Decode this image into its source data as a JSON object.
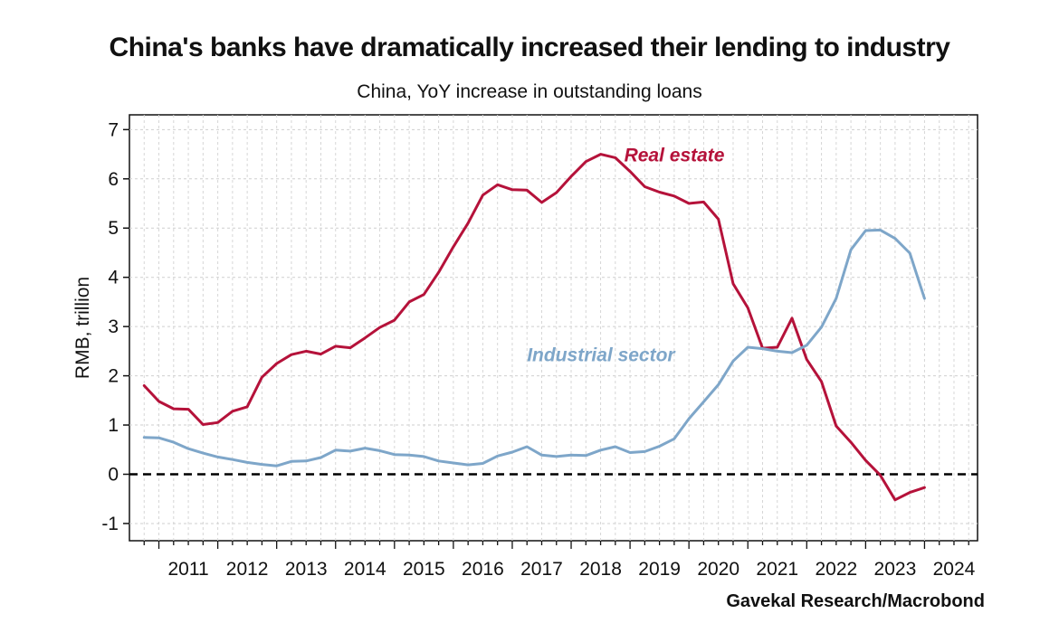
{
  "title": "China's banks have dramatically increased their lending to industry",
  "subtitle": "China, YoY increase in outstanding loans",
  "source": "Gavekal Research/Macrobond",
  "chart_data": {
    "type": "line",
    "title": "China's banks have dramatically increased their lending to industry",
    "subtitle": "China, YoY increase in outstanding loans",
    "ylabel": "RMB, trillion",
    "xlabel": "",
    "xlim": [
      2010.5,
      2024.9
    ],
    "ylim": [
      -1.35,
      7.3
    ],
    "yticks": [
      -1,
      0,
      1,
      2,
      3,
      4,
      5,
      6,
      7
    ],
    "year_labels": [
      "2011",
      "2012",
      "2013",
      "2014",
      "2015",
      "2016",
      "2017",
      "2018",
      "2019",
      "2020",
      "2021",
      "2022",
      "2023",
      "2024"
    ],
    "grid": true,
    "reference_line": {
      "y": 0,
      "style": "dashed",
      "color": "#000000"
    },
    "x": [
      2010.75,
      2011.0,
      2011.25,
      2011.5,
      2011.75,
      2012.0,
      2012.25,
      2012.5,
      2012.75,
      2013.0,
      2013.25,
      2013.5,
      2013.75,
      2014.0,
      2014.25,
      2014.5,
      2014.75,
      2015.0,
      2015.25,
      2015.5,
      2015.75,
      2016.0,
      2016.25,
      2016.5,
      2016.75,
      2017.0,
      2017.25,
      2017.5,
      2017.75,
      2018.0,
      2018.25,
      2018.5,
      2018.75,
      2019.0,
      2019.25,
      2019.5,
      2019.75,
      2020.0,
      2020.25,
      2020.5,
      2020.75,
      2021.0,
      2021.25,
      2021.5,
      2021.75,
      2022.0,
      2022.25,
      2022.5,
      2022.75,
      2023.0,
      2023.25,
      2023.5,
      2023.75,
      2024.0,
      2024.25
    ],
    "series": [
      {
        "name": "Real estate",
        "color": "#b5123a",
        "values": [
          1.8,
          1.48,
          1.33,
          1.32,
          1.01,
          1.05,
          1.28,
          1.37,
          1.97,
          2.25,
          2.43,
          2.5,
          2.44,
          2.6,
          2.57,
          2.77,
          2.98,
          3.13,
          3.5,
          3.65,
          4.1,
          4.62,
          5.1,
          5.67,
          5.88,
          5.78,
          5.77,
          5.52,
          5.72,
          6.05,
          6.35,
          6.5,
          6.43,
          6.15,
          5.84,
          5.73,
          5.65,
          5.5,
          5.53,
          5.18,
          3.87,
          3.38,
          2.56,
          2.58,
          3.17,
          2.33,
          1.88,
          0.98,
          0.65,
          0.28,
          -0.02,
          -0.52,
          -0.37,
          -0.27,
          null
        ]
      },
      {
        "name": "Industrial sector",
        "color": "#7ea6c9",
        "values": [
          0.75,
          0.74,
          0.65,
          0.52,
          0.43,
          0.35,
          0.3,
          0.24,
          0.2,
          0.17,
          0.26,
          0.27,
          0.34,
          0.49,
          0.47,
          0.53,
          0.48,
          0.4,
          0.39,
          0.36,
          0.27,
          0.23,
          0.19,
          0.22,
          0.37,
          0.45,
          0.56,
          0.39,
          0.36,
          0.39,
          0.38,
          0.49,
          0.56,
          0.44,
          0.46,
          0.57,
          0.72,
          1.13,
          1.47,
          1.82,
          2.3,
          2.58,
          2.55,
          2.5,
          2.47,
          2.62,
          2.99,
          3.57,
          4.56,
          4.95,
          4.96,
          4.79,
          4.49,
          3.57,
          null
        ]
      }
    ]
  }
}
